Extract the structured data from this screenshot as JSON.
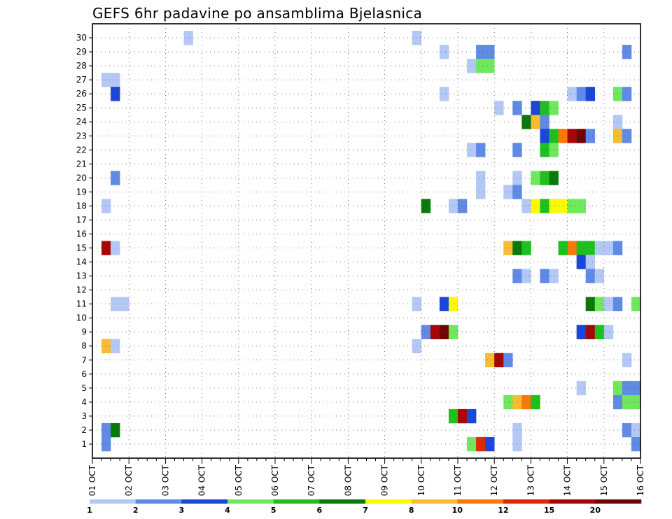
{
  "chart_data": {
    "type": "heatmap",
    "title": "GEFS 6hr padavine po ansamblima Bjelasnica",
    "xlabel": "",
    "ylabel": "",
    "x_ticks": [
      "01 OCT",
      "02 OCT",
      "03 OCT",
      "04 OCT",
      "05 OCT",
      "06 OCT",
      "07 OCT",
      "08 OCT",
      "09 OCT",
      "10 OCT",
      "11 OCT",
      "12 OCT",
      "13 OCT",
      "14 OCT",
      "15 OCT",
      "16 OCT"
    ],
    "y_ticks": [
      1,
      2,
      3,
      4,
      5,
      6,
      7,
      8,
      9,
      10,
      11,
      12,
      13,
      14,
      15,
      16,
      17,
      18,
      19,
      20,
      21,
      22,
      23,
      24,
      25,
      26,
      27,
      28,
      29,
      30
    ],
    "x_range_days": [
      1,
      16
    ],
    "y_range": [
      0.5,
      30.5
    ],
    "step_hours": 6,
    "grid": true,
    "colorbar": {
      "labels": [
        "1",
        "2",
        "3",
        "4",
        "5",
        "6",
        "7",
        "8",
        "10",
        "12",
        "15",
        "20"
      ],
      "colors": [
        "#b4c8f5",
        "#5f8ae6",
        "#1c46d6",
        "#6fe85e",
        "#1ec01e",
        "#0a780a",
        "#fafa00",
        "#faba32",
        "#f57a0a",
        "#dd2806",
        "#a80606",
        "#6e0606"
      ]
    },
    "cells": [
      {
        "member": 30,
        "time": 10,
        "level": 1
      },
      {
        "member": 30,
        "time": 35,
        "level": 1
      },
      {
        "member": 29,
        "time": 38,
        "level": 1
      },
      {
        "member": 29,
        "time": 42,
        "level": 2
      },
      {
        "member": 29,
        "time": 43,
        "level": 2
      },
      {
        "member": 29,
        "time": 58,
        "level": 2
      },
      {
        "member": 28,
        "time": 41,
        "level": 1
      },
      {
        "member": 28,
        "time": 42,
        "level": 4
      },
      {
        "member": 28,
        "time": 43,
        "level": 4
      },
      {
        "member": 27,
        "time": 1,
        "level": 1
      },
      {
        "member": 27,
        "time": 2,
        "level": 1
      },
      {
        "member": 26,
        "time": 2,
        "level": 3
      },
      {
        "member": 26,
        "time": 38,
        "level": 1
      },
      {
        "member": 26,
        "time": 52,
        "level": 1
      },
      {
        "member": 26,
        "time": 53,
        "level": 2
      },
      {
        "member": 26,
        "time": 54,
        "level": 3
      },
      {
        "member": 26,
        "time": 57,
        "level": 4
      },
      {
        "member": 26,
        "time": 58,
        "level": 2
      },
      {
        "member": 25,
        "time": 44,
        "level": 1
      },
      {
        "member": 25,
        "time": 46,
        "level": 2
      },
      {
        "member": 25,
        "time": 48,
        "level": 3
      },
      {
        "member": 25,
        "time": 49,
        "level": 5
      },
      {
        "member": 25,
        "time": 50,
        "level": 4
      },
      {
        "member": 24,
        "time": 47,
        "level": 6
      },
      {
        "member": 24,
        "time": 48,
        "level": 8
      },
      {
        "member": 24,
        "time": 49,
        "level": 2
      },
      {
        "member": 24,
        "time": 57,
        "level": 1
      },
      {
        "member": 23,
        "time": 49,
        "level": 3
      },
      {
        "member": 23,
        "time": 50,
        "level": 5
      },
      {
        "member": 23,
        "time": 51,
        "level": 9
      },
      {
        "member": 23,
        "time": 52,
        "level": 11
      },
      {
        "member": 23,
        "time": 53,
        "level": 12
      },
      {
        "member": 23,
        "time": 54,
        "level": 2
      },
      {
        "member": 23,
        "time": 57,
        "level": 8
      },
      {
        "member": 23,
        "time": 58,
        "level": 2
      },
      {
        "member": 22,
        "time": 41,
        "level": 1
      },
      {
        "member": 22,
        "time": 42,
        "level": 2
      },
      {
        "member": 22,
        "time": 46,
        "level": 2
      },
      {
        "member": 22,
        "time": 49,
        "level": 5
      },
      {
        "member": 22,
        "time": 50,
        "level": 4
      },
      {
        "member": 20,
        "time": 2,
        "level": 2
      },
      {
        "member": 20,
        "time": 42,
        "level": 1
      },
      {
        "member": 20,
        "time": 46,
        "level": 1
      },
      {
        "member": 20,
        "time": 48,
        "level": 4
      },
      {
        "member": 20,
        "time": 49,
        "level": 5
      },
      {
        "member": 20,
        "time": 50,
        "level": 6
      },
      {
        "member": 19,
        "time": 42,
        "level": 1
      },
      {
        "member": 19,
        "time": 45,
        "level": 1
      },
      {
        "member": 19,
        "time": 46,
        "level": 2
      },
      {
        "member": 18,
        "time": 1,
        "level": 1
      },
      {
        "member": 18,
        "time": 36,
        "level": 6
      },
      {
        "member": 18,
        "time": 39,
        "level": 1
      },
      {
        "member": 18,
        "time": 40,
        "level": 2
      },
      {
        "member": 18,
        "time": 47,
        "level": 1
      },
      {
        "member": 18,
        "time": 48,
        "level": 7
      },
      {
        "member": 18,
        "time": 49,
        "level": 5
      },
      {
        "member": 18,
        "time": 50,
        "level": 7
      },
      {
        "member": 18,
        "time": 51,
        "level": 7
      },
      {
        "member": 18,
        "time": 52,
        "level": 4
      },
      {
        "member": 18,
        "time": 53,
        "level": 4
      },
      {
        "member": 15,
        "time": 1,
        "level": 11
      },
      {
        "member": 15,
        "time": 2,
        "level": 1
      },
      {
        "member": 15,
        "time": 45,
        "level": 8
      },
      {
        "member": 15,
        "time": 46,
        "level": 6
      },
      {
        "member": 15,
        "time": 47,
        "level": 5
      },
      {
        "member": 15,
        "time": 51,
        "level": 5
      },
      {
        "member": 15,
        "time": 52,
        "level": 9
      },
      {
        "member": 15,
        "time": 53,
        "level": 5
      },
      {
        "member": 15,
        "time": 54,
        "level": 5
      },
      {
        "member": 15,
        "time": 55,
        "level": 1
      },
      {
        "member": 15,
        "time": 56,
        "level": 1
      },
      {
        "member": 15,
        "time": 57,
        "level": 2
      },
      {
        "member": 14,
        "time": 53,
        "level": 3
      },
      {
        "member": 14,
        "time": 54,
        "level": 1
      },
      {
        "member": 13,
        "time": 46,
        "level": 2
      },
      {
        "member": 13,
        "time": 47,
        "level": 1
      },
      {
        "member": 13,
        "time": 49,
        "level": 2
      },
      {
        "member": 13,
        "time": 50,
        "level": 1
      },
      {
        "member": 13,
        "time": 54,
        "level": 2
      },
      {
        "member": 13,
        "time": 55,
        "level": 1
      },
      {
        "member": 11,
        "time": 35,
        "level": 1
      },
      {
        "member": 11,
        "time": 2,
        "level": 1
      },
      {
        "member": 11,
        "time": 3,
        "level": 1
      },
      {
        "member": 11,
        "time": 38,
        "level": 3
      },
      {
        "member": 11,
        "time": 39,
        "level": 7
      },
      {
        "member": 11,
        "time": 54,
        "level": 6
      },
      {
        "member": 11,
        "time": 55,
        "level": 4
      },
      {
        "member": 11,
        "time": 56,
        "level": 1
      },
      {
        "member": 11,
        "time": 57,
        "level": 2
      },
      {
        "member": 11,
        "time": 59,
        "level": 4
      },
      {
        "member": 9,
        "time": 36,
        "level": 2
      },
      {
        "member": 9,
        "time": 37,
        "level": 11
      },
      {
        "member": 9,
        "time": 38,
        "level": 12
      },
      {
        "member": 9,
        "time": 39,
        "level": 4
      },
      {
        "member": 9,
        "time": 53,
        "level": 3
      },
      {
        "member": 9,
        "time": 54,
        "level": 11
      },
      {
        "member": 9,
        "time": 55,
        "level": 5
      },
      {
        "member": 9,
        "time": 56,
        "level": 1
      },
      {
        "member": 8,
        "time": 1,
        "level": 8
      },
      {
        "member": 8,
        "time": 2,
        "level": 1
      },
      {
        "member": 8,
        "time": 35,
        "level": 1
      },
      {
        "member": 7,
        "time": 43,
        "level": 8
      },
      {
        "member": 7,
        "time": 44,
        "level": 11
      },
      {
        "member": 7,
        "time": 45,
        "level": 2
      },
      {
        "member": 7,
        "time": 58,
        "level": 1
      },
      {
        "member": 5,
        "time": 53,
        "level": 1
      },
      {
        "member": 5,
        "time": 57,
        "level": 4
      },
      {
        "member": 5,
        "time": 58,
        "level": 2
      },
      {
        "member": 5,
        "time": 59,
        "level": 2
      },
      {
        "member": 4,
        "time": 45,
        "level": 4
      },
      {
        "member": 4,
        "time": 46,
        "level": 8
      },
      {
        "member": 4,
        "time": 47,
        "level": 9
      },
      {
        "member": 4,
        "time": 48,
        "level": 5
      },
      {
        "member": 4,
        "time": 57,
        "level": 2
      },
      {
        "member": 4,
        "time": 58,
        "level": 4
      },
      {
        "member": 4,
        "time": 59,
        "level": 4
      },
      {
        "member": 3,
        "time": 39,
        "level": 5
      },
      {
        "member": 3,
        "time": 40,
        "level": 11
      },
      {
        "member": 3,
        "time": 41,
        "level": 3
      },
      {
        "member": 2,
        "time": 1,
        "level": 2
      },
      {
        "member": 2,
        "time": 2,
        "level": 6
      },
      {
        "member": 2,
        "time": 46,
        "level": 1
      },
      {
        "member": 2,
        "time": 58,
        "level": 2
      },
      {
        "member": 2,
        "time": 59,
        "level": 1
      },
      {
        "member": 1,
        "time": 1,
        "level": 2
      },
      {
        "member": 1,
        "time": 41,
        "level": 4
      },
      {
        "member": 1,
        "time": 42,
        "level": 10
      },
      {
        "member": 1,
        "time": 43,
        "level": 3
      },
      {
        "member": 1,
        "time": 46,
        "level": 1
      },
      {
        "member": 1,
        "time": 59,
        "level": 2
      }
    ]
  }
}
